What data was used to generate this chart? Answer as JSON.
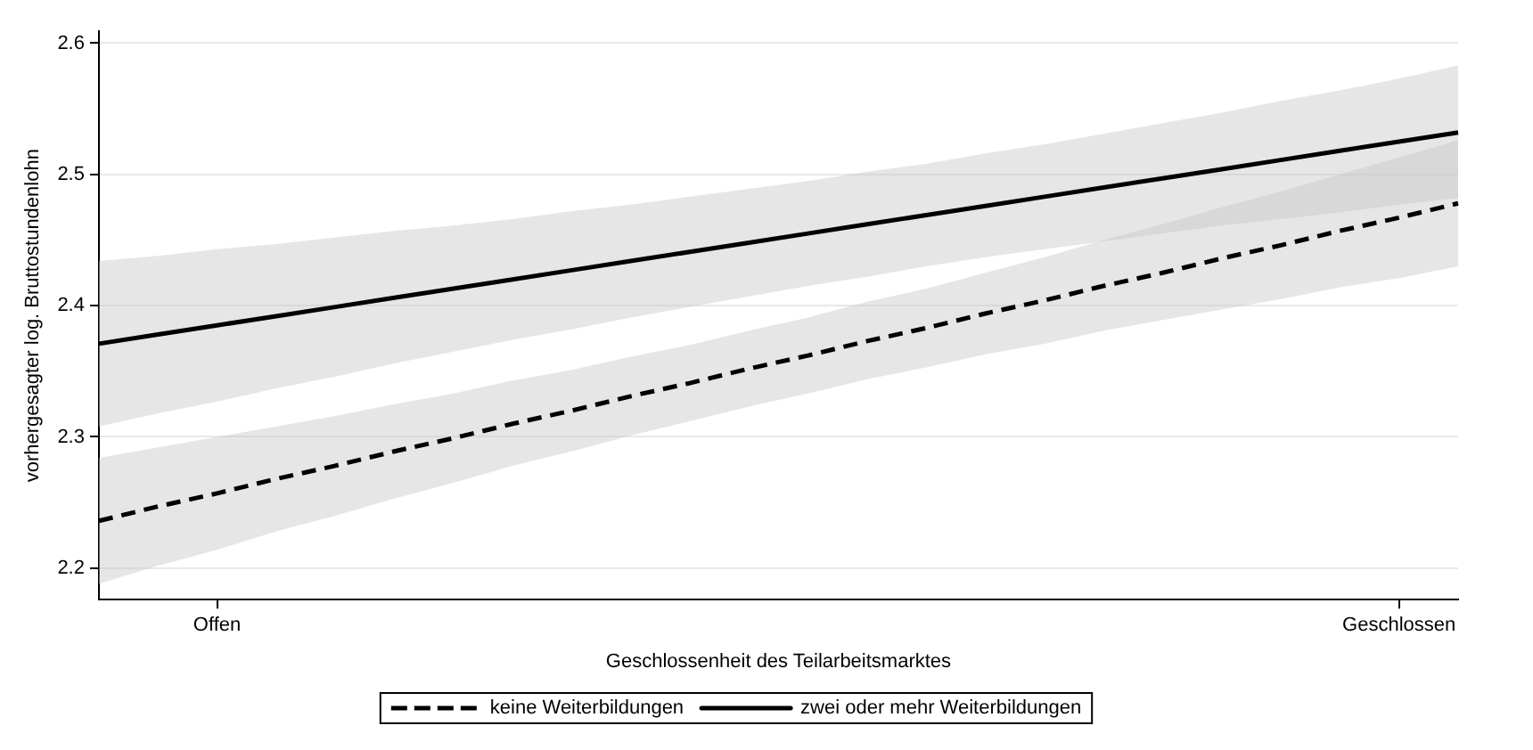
{
  "chart_data": {
    "type": "line",
    "xlabel": "Geschlossenheit des Teilarbeitsmarktes",
    "ylabel": "vorhergesagter log. Bruttostundenlohn",
    "categories": [
      null,
      null,
      "Offen",
      null,
      null,
      null,
      null,
      null,
      null,
      null,
      null,
      null,
      null,
      null,
      null,
      null,
      null,
      null,
      null,
      null,
      null,
      null,
      "Geschlossen",
      null
    ],
    "series": [
      {
        "name": "keine Weiterbildungen",
        "color": "#000000",
        "line_style": "dashed",
        "values": [
          2.236,
          2.247,
          2.257,
          2.268,
          2.278,
          2.289,
          2.299,
          2.31,
          2.32,
          2.331,
          2.341,
          2.352,
          2.362,
          2.373,
          2.383,
          2.394,
          2.404,
          2.415,
          2.425,
          2.436,
          2.446,
          2.457,
          2.467,
          2.478
        ],
        "lower": [
          2.188,
          2.202,
          2.214,
          2.228,
          2.24,
          2.253,
          2.265,
          2.278,
          2.289,
          2.301,
          2.312,
          2.323,
          2.333,
          2.344,
          2.353,
          2.363,
          2.371,
          2.381,
          2.389,
          2.397,
          2.405,
          2.414,
          2.421,
          2.43
        ],
        "upper": [
          2.284,
          2.292,
          2.3,
          2.308,
          2.316,
          2.325,
          2.333,
          2.343,
          2.351,
          2.361,
          2.37,
          2.381,
          2.391,
          2.403,
          2.413,
          2.425,
          2.437,
          2.45,
          2.462,
          2.475,
          2.487,
          2.5,
          2.513,
          2.526
        ]
      },
      {
        "name": "zwei oder mehr Weiterbildungen",
        "color": "#000000",
        "line_style": "solid",
        "values": [
          2.371,
          2.378,
          2.385,
          2.392,
          2.399,
          2.406,
          2.413,
          2.42,
          2.427,
          2.434,
          2.441,
          2.448,
          2.455,
          2.462,
          2.469,
          2.476,
          2.483,
          2.49,
          2.497,
          2.504,
          2.511,
          2.518,
          2.525,
          2.532
        ],
        "lower": [
          2.308,
          2.318,
          2.327,
          2.337,
          2.346,
          2.356,
          2.365,
          2.374,
          2.382,
          2.391,
          2.399,
          2.407,
          2.415,
          2.422,
          2.43,
          2.437,
          2.443,
          2.449,
          2.455,
          2.461,
          2.466,
          2.471,
          2.477,
          2.482
        ],
        "upper": [
          2.434,
          2.438,
          2.443,
          2.447,
          2.452,
          2.457,
          2.461,
          2.466,
          2.472,
          2.477,
          2.483,
          2.489,
          2.495,
          2.502,
          2.508,
          2.516,
          2.523,
          2.531,
          2.539,
          2.547,
          2.556,
          2.564,
          2.573,
          2.583
        ]
      }
    ],
    "ylim": [
      2.176,
      2.609
    ],
    "yticks": [
      2.2,
      2.3,
      2.4,
      2.5,
      2.6
    ],
    "grid": "y",
    "legend": "bottom",
    "marker": "none"
  }
}
